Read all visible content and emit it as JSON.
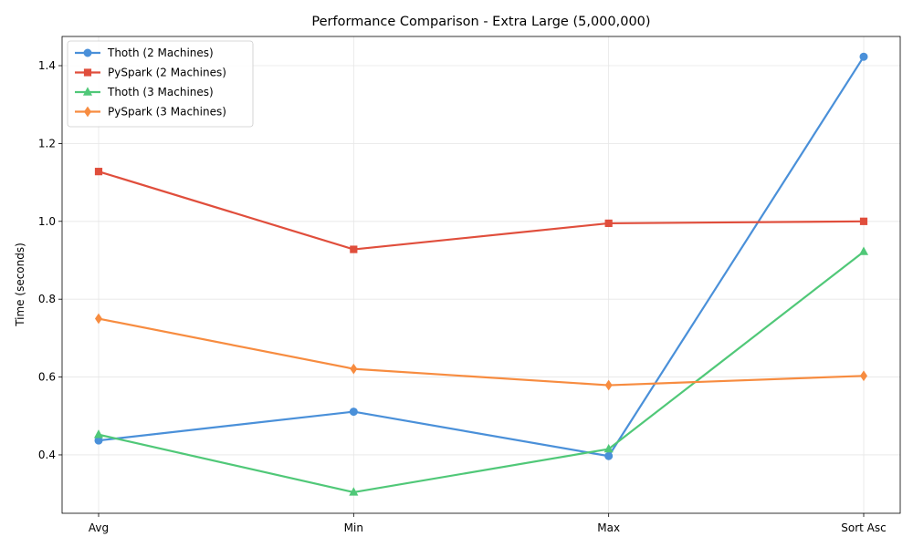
{
  "chart_data": {
    "type": "line",
    "title": "Performance Comparison - Extra Large (5,000,000)",
    "xlabel": "",
    "ylabel": "Time (seconds)",
    "categories": [
      "Avg",
      "Min",
      "Max",
      "Sort Asc"
    ],
    "ylim": [
      0.25,
      1.475
    ],
    "yticks": [
      0.4,
      0.6,
      0.8,
      1.0,
      1.2,
      1.4
    ],
    "ytick_labels": [
      "0.4",
      "0.6",
      "0.8",
      "1.0",
      "1.2",
      "1.4"
    ],
    "grid": true,
    "legend": "top-left",
    "series": [
      {
        "name": "Thoth (2 Machines)",
        "values": [
          0.437,
          0.511,
          0.397,
          1.423
        ],
        "color": "#4a90d9",
        "marker": "circle"
      },
      {
        "name": "PySpark (2 Machines)",
        "values": [
          1.128,
          0.928,
          0.995,
          1.0
        ],
        "color": "#e04e3c",
        "marker": "square"
      },
      {
        "name": "Thoth (3 Machines)",
        "values": [
          0.452,
          0.304,
          0.415,
          0.922
        ],
        "color": "#50c878",
        "marker": "triangle"
      },
      {
        "name": "PySpark (3 Machines)",
        "values": [
          0.75,
          0.621,
          0.579,
          0.603
        ],
        "color": "#f78c40",
        "marker": "diamond"
      }
    ]
  }
}
